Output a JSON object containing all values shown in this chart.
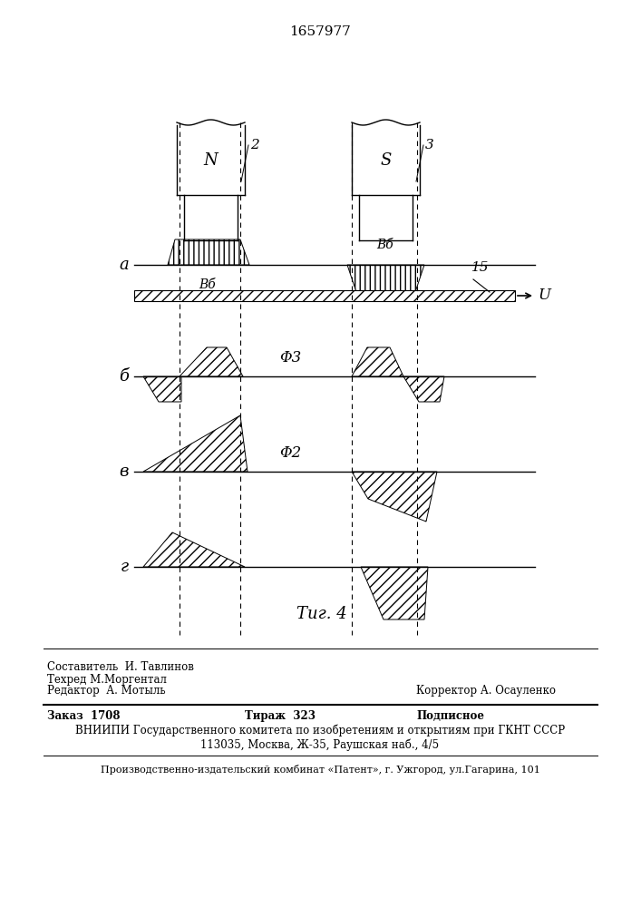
{
  "title": "1657977",
  "fig_caption": "Τиг. 4",
  "background": "#ffffff",
  "label_a": "а",
  "label_b": "б",
  "label_v": "в",
  "label_g": "г",
  "label_N": "N",
  "label_S": "S",
  "label_2": "2",
  "label_3": "3",
  "label_Vb1": "Вб",
  "label_Vb2": "Вб",
  "label_15": "15",
  "label_U": "U",
  "label_phi3": "Φ3",
  "label_phi2": "Φ2",
  "footer_line1": "Составитель  И. Тавлинов",
  "footer_line2": "Техред М.Моргентал",
  "footer_editor": "Редактор  А. Мотыль",
  "footer_corrector": "Корректор А. Осауленко",
  "footer_order": "Заказ  1708",
  "footer_tirazh": "Тираж  323",
  "footer_podpisnoe": "Подписное",
  "footer_vniiipi": "ВНИИПИ Государственного комитета по изобретениям и открытиям при ГКНТ СССР",
  "footer_addr": "113035, Москва, Ж-35, Раушская наб., 4/5",
  "footer_production": "Производственно-издательский комбинат «Патент», г. Ужгород, ул.Гагарина, 101"
}
